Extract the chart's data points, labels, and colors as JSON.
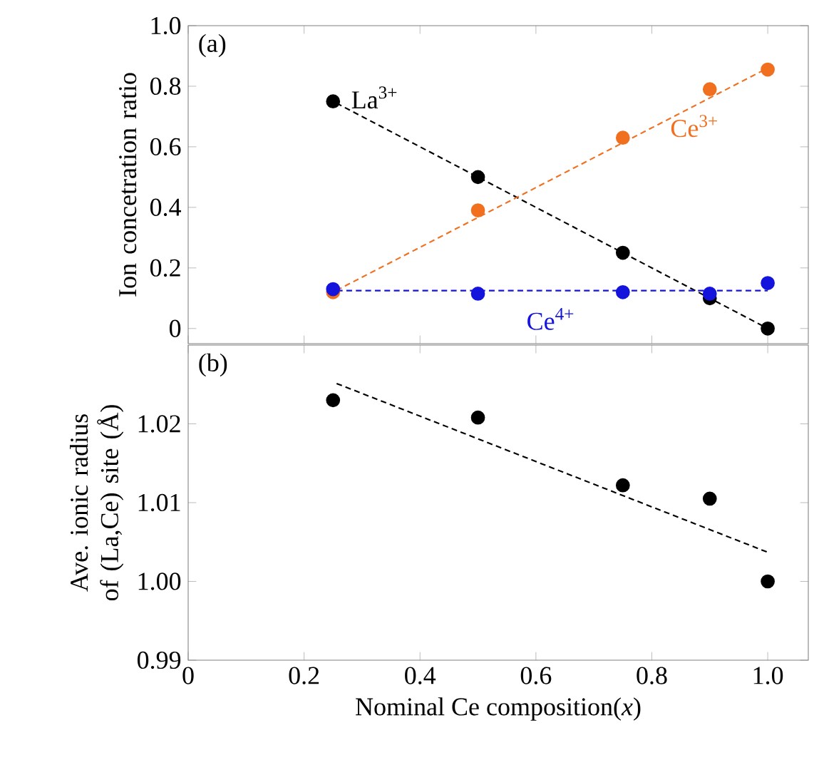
{
  "chart_data": [
    {
      "type": "scatter",
      "ylabel": "Ion concetration ratio",
      "annotations": [
        "(a)"
      ],
      "xlim": [
        0,
        1.07
      ],
      "ylim": [
        -0.05,
        1.0
      ],
      "xticks": [
        0,
        0.2,
        0.4,
        0.6,
        0.8,
        1
      ],
      "yticks": [
        0,
        0.2,
        0.4,
        0.6,
        0.8,
        {
          "value": 1,
          "label": "1.0"
        }
      ],
      "tick_labels": "y",
      "series": [
        {
          "name": "La$^{3+}$",
          "marker": "circle",
          "color": "#000000",
          "x": [
            0.25,
            0.5,
            0.75,
            0.9,
            1.0
          ],
          "values": [
            0.75,
            0.5,
            0.25,
            0.1,
            0.0
          ]
        },
        {
          "name": "Ce$^{3+}$",
          "marker": "circle",
          "color": "#f07020",
          "x": [
            0.25,
            0.5,
            0.75,
            0.9,
            1.0
          ],
          "values": [
            0.12,
            0.39,
            0.63,
            0.79,
            0.855
          ]
        },
        {
          "name": "Ce$^{4+}$",
          "marker": "circle",
          "color": "#1414dc",
          "x": [
            0.25,
            0.5,
            0.75,
            0.9,
            1.0
          ],
          "values": [
            0.13,
            0.115,
            0.12,
            0.115,
            0.15
          ]
        },
        {
          "type": "line",
          "line_style": "dashed",
          "marker": "none",
          "color": "#000000",
          "x": [
            0.25,
            1.0
          ],
          "values": [
            0.75,
            0.0
          ]
        },
        {
          "type": "line",
          "line_style": "dashed",
          "marker": "none",
          "color": "#f07020",
          "x": [
            0.25,
            1.0
          ],
          "values": [
            0.12,
            0.86
          ]
        },
        {
          "type": "line",
          "line_style": "dashed",
          "marker": "none",
          "color": "#1414dc",
          "x": [
            0.25,
            1.0
          ],
          "values": [
            0.125,
            0.125
          ]
        }
      ]
    },
    {
      "type": "scatter",
      "xlabel": "Nominal Ce composition(*x*)",
      "ylabel": "Ave. ionic radius of (La,Ce) site (Å)",
      "annotations": [
        "(b)"
      ],
      "xlim": [
        0,
        1.07
      ],
      "ylim": [
        0.99,
        1.03
      ],
      "xticks": [
        0,
        0.2,
        0.4,
        0.6,
        0.8,
        {
          "value": 1,
          "label": "1.0"
        }
      ],
      "yticks": [
        0.99,
        {
          "value": 1,
          "label": "1.00"
        },
        1.01,
        1.02
      ],
      "series": [
        {
          "marker": "circle",
          "color": "#000000",
          "x": [
            0.25,
            0.5,
            0.75,
            0.9,
            1.0
          ],
          "values": [
            1.023,
            1.0208,
            1.0122,
            1.0105,
            1.0
          ]
        },
        {
          "type": "line",
          "line_style": "dashed",
          "marker": "none",
          "color": "#000000",
          "x": [
            0.25,
            1.0
          ],
          "values": [
            1.0253,
            1.0037
          ]
        }
      ]
    }
  ]
}
